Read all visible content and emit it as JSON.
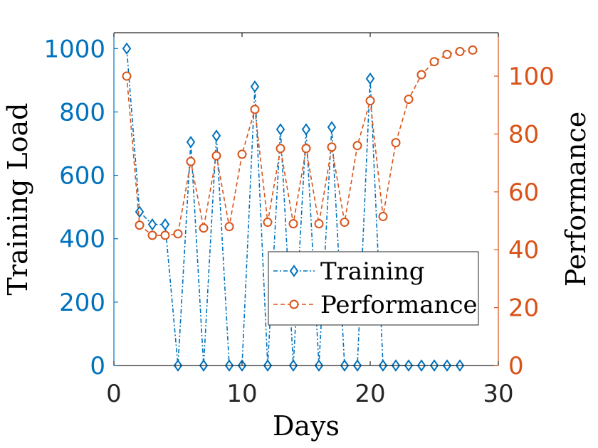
{
  "chart_data": {
    "type": "line",
    "xlabel": "Days",
    "ylabel_left": "Training Load",
    "ylabel_right": "Performance",
    "xlim": [
      0,
      30
    ],
    "ylim_left": [
      0,
      1050
    ],
    "ylim_right": [
      0,
      115
    ],
    "x_ticks": [
      "0",
      "10",
      "20",
      "30"
    ],
    "x_tick_values": [
      0,
      10,
      20,
      30
    ],
    "y_left_ticks": [
      "0",
      "200",
      "400",
      "600",
      "800",
      "1000"
    ],
    "y_left_tick_values": [
      0,
      200,
      400,
      600,
      800,
      1000
    ],
    "y_right_ticks": [
      "0",
      "20",
      "40",
      "60",
      "80",
      "100"
    ],
    "y_right_tick_values": [
      0,
      20,
      40,
      60,
      80,
      100
    ],
    "grid": false,
    "legend_position": "lower-right",
    "series": [
      {
        "name": "Training",
        "axis": "left",
        "color": "#0072BD",
        "line_style": "dash-dot",
        "marker": "diamond",
        "x": [
          1,
          2,
          3,
          4,
          5,
          6,
          7,
          8,
          9,
          10,
          11,
          12,
          13,
          14,
          15,
          16,
          17,
          18,
          19,
          20,
          21,
          22,
          23,
          24,
          25,
          26,
          27
        ],
        "values": [
          1000,
          485,
          445,
          445,
          0,
          705,
          0,
          725,
          0,
          0,
          880,
          0,
          745,
          0,
          745,
          0,
          752,
          0,
          0,
          905,
          0,
          0,
          0,
          0,
          0,
          0,
          0
        ]
      },
      {
        "name": "Performance",
        "axis": "right",
        "color": "#D95319",
        "line_style": "dashed",
        "marker": "circle",
        "x": [
          1,
          2,
          3,
          4,
          5,
          6,
          7,
          8,
          9,
          10,
          11,
          12,
          13,
          14,
          15,
          16,
          17,
          18,
          19,
          20,
          21,
          22,
          23,
          24,
          25,
          26,
          27,
          28
        ],
        "values": [
          100,
          48.5,
          45,
          45,
          45.5,
          70.5,
          47.5,
          72.5,
          48,
          73,
          88.5,
          49.5,
          75,
          49,
          75,
          49,
          75.5,
          49.5,
          76,
          91.5,
          51.5,
          77,
          92,
          100.5,
          105,
          107.5,
          108.5,
          109
        ]
      }
    ]
  }
}
